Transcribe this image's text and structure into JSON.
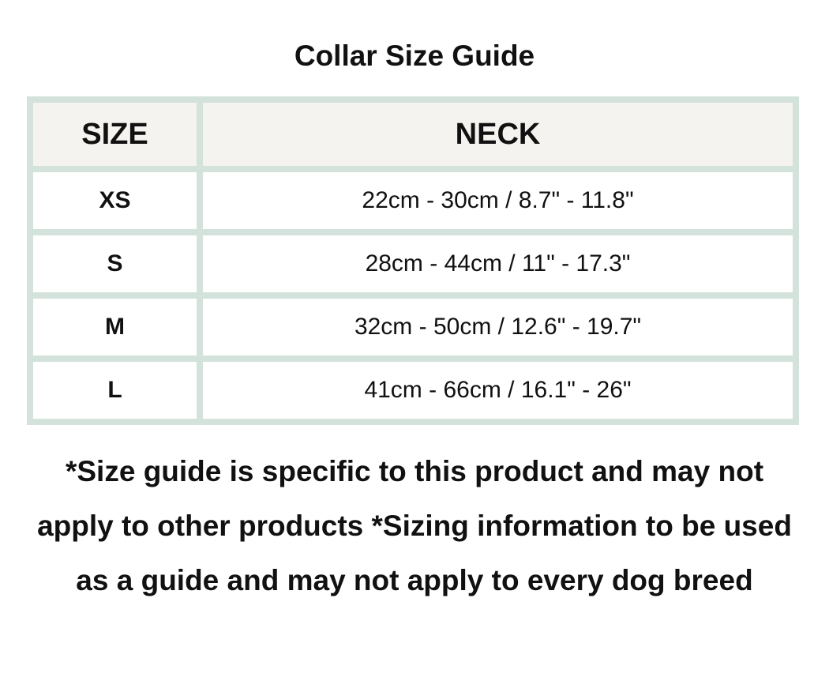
{
  "title": "Collar Size Guide",
  "table": {
    "headers": [
      "SIZE",
      "NECK"
    ],
    "rows": [
      {
        "size": "XS",
        "neck": "22cm - 30cm / 8.7\" - 11.8\""
      },
      {
        "size": "S",
        "neck": "28cm - 44cm / 11\" - 17.3\""
      },
      {
        "size": "M",
        "neck": "32cm - 50cm / 12.6\" - 19.7\""
      },
      {
        "size": "L",
        "neck": "41cm - 66cm / 16.1\" - 26\""
      }
    ]
  },
  "note": "*Size guide is specific to this product and may not apply to other products *Sizing information to be used as a guide and may not apply to every dog breed",
  "colors": {
    "border": "#d3e2db",
    "header_bg": "#f5f3ef"
  }
}
